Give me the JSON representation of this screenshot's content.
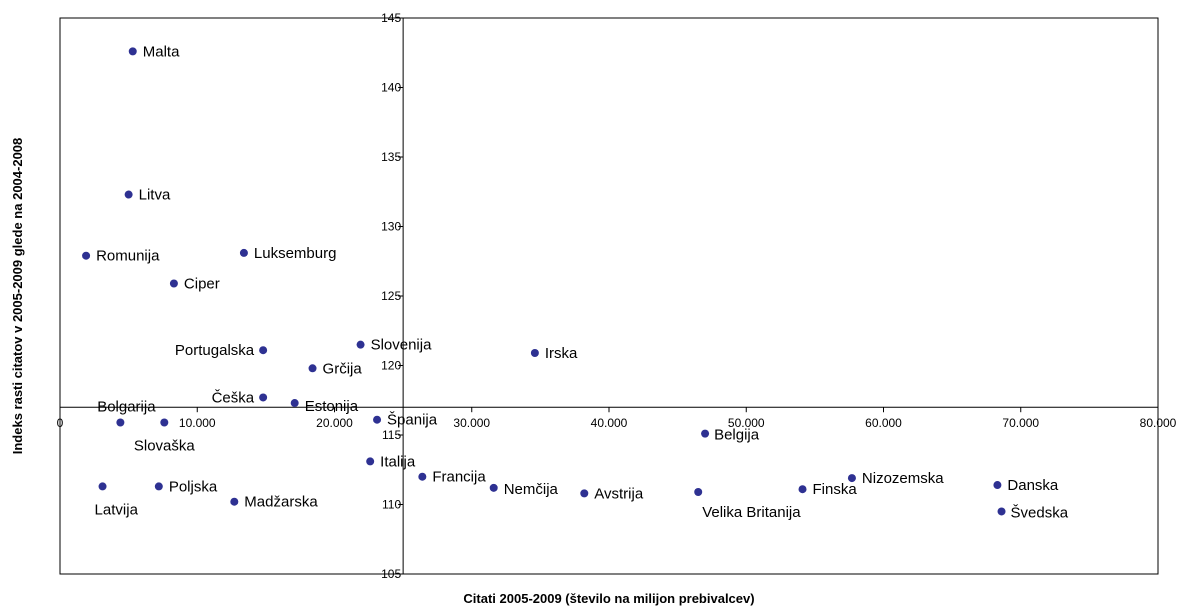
{
  "chart_data": {
    "type": "scatter",
    "xlabel": "Citati 2005-2009 (število na milijon prebivalcev)",
    "ylabel": "Indeks rasti citatov v 2005-2009 glede na 2004-2008",
    "xlim": [
      0,
      80000
    ],
    "ylim": [
      105,
      145
    ],
    "xticks": [
      0,
      10000,
      20000,
      30000,
      40000,
      50000,
      60000,
      70000,
      80000
    ],
    "xtick_labels": [
      "0",
      "10.000",
      "20.000",
      "30.000",
      "40.000",
      "50.000",
      "60.000",
      "70.000",
      "80.000"
    ],
    "yticks": [
      105,
      110,
      115,
      120,
      125,
      130,
      135,
      140,
      145
    ],
    "ytick_labels": [
      "105",
      "110",
      "115",
      "120",
      "125",
      "130",
      "135",
      "140",
      "145"
    ],
    "axis_cross": {
      "x": 25000,
      "y": 117
    },
    "grid": false,
    "marker_color": "#2E3192",
    "highlight_color": "#E8161C",
    "points": [
      {
        "label": "Malta",
        "x": 5300,
        "y": 142.6
      },
      {
        "label": "Litva",
        "x": 5000,
        "y": 132.3
      },
      {
        "label": "Romunija",
        "x": 1900,
        "y": 127.9
      },
      {
        "label": "Luksemburg",
        "x": 13400,
        "y": 128.1
      },
      {
        "label": "Ciper",
        "x": 8300,
        "y": 125.9
      },
      {
        "label": "Portugalska",
        "x": 14800,
        "y": 121.1
      },
      {
        "label": "Slovenija",
        "x": 21900,
        "y": 121.5,
        "highlight": true
      },
      {
        "label": "Irska",
        "x": 34600,
        "y": 120.9
      },
      {
        "label": "Grčija",
        "x": 18400,
        "y": 119.8
      },
      {
        "label": "Češka",
        "x": 14800,
        "y": 117.7
      },
      {
        "label": "Estonija",
        "x": 17100,
        "y": 117.3
      },
      {
        "label": "Bolgarija",
        "x": 4400,
        "y": 115.9
      },
      {
        "label": "Slovaška",
        "x": 7600,
        "y": 115.9
      },
      {
        "label": "Španija",
        "x": 23100,
        "y": 116.1
      },
      {
        "label": "Belgija",
        "x": 47000,
        "y": 115.1
      },
      {
        "label": "Italija",
        "x": 22600,
        "y": 113.1
      },
      {
        "label": "Francija",
        "x": 26400,
        "y": 112.0
      },
      {
        "label": "Nemčija",
        "x": 31600,
        "y": 111.2
      },
      {
        "label": "Avstrija",
        "x": 38200,
        "y": 110.8
      },
      {
        "label": "Velika Britanija",
        "x": 46500,
        "y": 110.9
      },
      {
        "label": "Finska",
        "x": 54100,
        "y": 111.1
      },
      {
        "label": "Nizozemska",
        "x": 57700,
        "y": 111.9
      },
      {
        "label": "Danska",
        "x": 68300,
        "y": 111.4
      },
      {
        "label": "Švedska",
        "x": 68600,
        "y": 109.5
      },
      {
        "label": "Latvija",
        "x": 3100,
        "y": 111.3
      },
      {
        "label": "Poljska",
        "x": 7200,
        "y": 111.3
      },
      {
        "label": "Madžarska",
        "x": 12700,
        "y": 110.2
      }
    ]
  }
}
